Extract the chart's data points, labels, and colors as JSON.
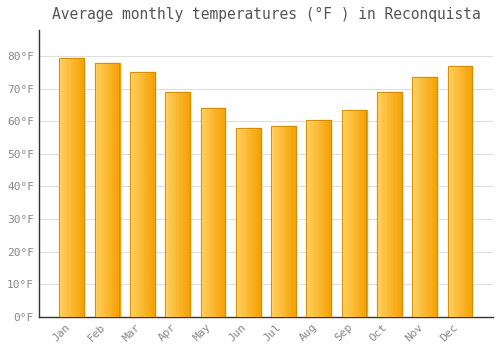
{
  "title": "Average monthly temperatures (°F ) in Reconquista",
  "months": [
    "Jan",
    "Feb",
    "Mar",
    "Apr",
    "May",
    "Jun",
    "Jul",
    "Aug",
    "Sep",
    "Oct",
    "Nov",
    "Dec"
  ],
  "values": [
    79.5,
    78.0,
    75.0,
    69.0,
    64.0,
    58.0,
    58.5,
    60.5,
    63.5,
    69.0,
    73.5,
    77.0
  ],
  "bar_color_left": "#FFD060",
  "bar_color_right": "#F5A000",
  "bar_edge_color": "#CC8800",
  "background_color": "#FFFFFF",
  "grid_color": "#DDDDDD",
  "tick_color": "#888888",
  "title_color": "#555555",
  "axis_color": "#333333",
  "ylim": [
    0,
    88
  ],
  "yticks": [
    0,
    10,
    20,
    30,
    40,
    50,
    60,
    70,
    80
  ],
  "ytick_labels": [
    "0°F",
    "10°F",
    "20°F",
    "30°F",
    "40°F",
    "50°F",
    "60°F",
    "70°F",
    "80°F"
  ],
  "title_fontsize": 10.5,
  "tick_fontsize": 8
}
